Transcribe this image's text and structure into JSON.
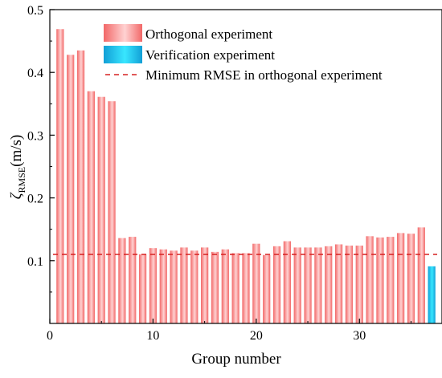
{
  "chart_data": {
    "type": "bar",
    "xlabel": "Group number",
    "ylabel_symbol": "ζ",
    "ylabel_subscript": "RMSE",
    "ylabel_unit": "(m/s)",
    "xlim": [
      0,
      38
    ],
    "ylim": [
      0,
      0.5
    ],
    "x_ticks": [
      0,
      10,
      20,
      30
    ],
    "y_ticks": [
      0.1,
      0.2,
      0.3,
      0.4,
      0.5
    ],
    "x_tick_labels": [
      "0",
      "10",
      "20",
      "30"
    ],
    "y_tick_labels": [
      "0.1",
      "0.2",
      "0.3",
      "0.4",
      "0.5"
    ],
    "grid": false,
    "legend_position": "top-right",
    "series": [
      {
        "name": "Orthogonal experiment",
        "color": "#f07070",
        "x": [
          1,
          2,
          3,
          4,
          5,
          6,
          7,
          8,
          9,
          10,
          11,
          12,
          13,
          14,
          15,
          16,
          17,
          18,
          19,
          20,
          21,
          22,
          23,
          24,
          25,
          26,
          27,
          28,
          29,
          30,
          31,
          32,
          33,
          34,
          35,
          36
        ],
        "values": [
          0.469,
          0.428,
          0.435,
          0.37,
          0.361,
          0.354,
          0.136,
          0.138,
          0.11,
          0.12,
          0.118,
          0.116,
          0.121,
          0.116,
          0.121,
          0.114,
          0.118,
          0.112,
          0.112,
          0.127,
          0.109,
          0.123,
          0.131,
          0.121,
          0.121,
          0.121,
          0.123,
          0.126,
          0.124,
          0.124,
          0.139,
          0.137,
          0.138,
          0.144,
          0.143,
          0.153
        ]
      },
      {
        "name": "Verification experiment",
        "color": "#1ab8e8",
        "x": [
          37
        ],
        "values": [
          0.091
        ]
      }
    ],
    "reference_line": {
      "name": "Minimum RMSE in orthogonal experiment",
      "value": 0.11,
      "color": "#d62020"
    }
  }
}
